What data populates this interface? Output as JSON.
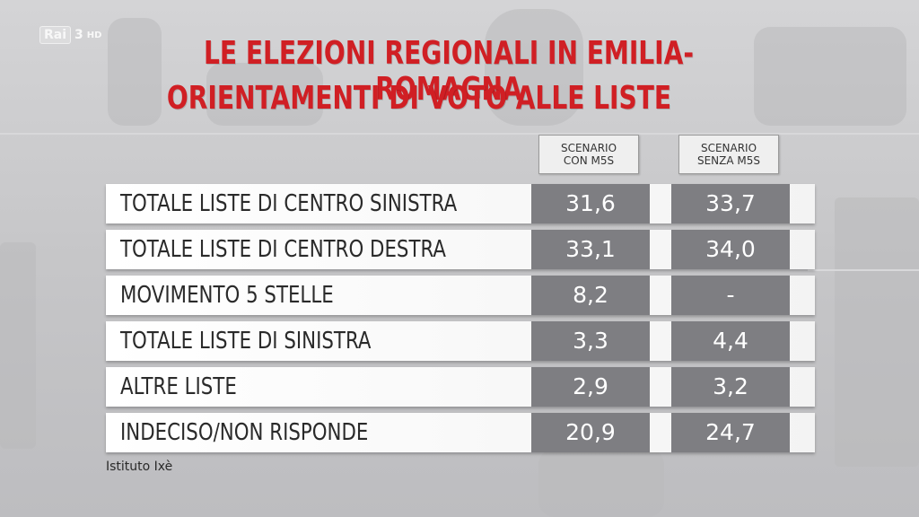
{
  "broadcaster": {
    "logo_text": "Rai",
    "channel": "3",
    "suffix": "HD"
  },
  "title_line1": "LE ELEZIONI REGIONALI IN EMILIA-ROMAGNA",
  "title_line2": "ORIENTAMENTI DI VOTO ALLE LISTE",
  "columns": [
    {
      "line1": "SCENARIO",
      "line2": "CON M5S"
    },
    {
      "line1": "SCENARIO",
      "line2": "SENZA M5S"
    }
  ],
  "colors": {
    "title": "#d01f24",
    "cell_bg": "#7e7e82",
    "row_bg": "#ffffff"
  },
  "chart_data": {
    "type": "table",
    "columns": [
      "SCENARIO CON M5S",
      "SCENARIO SENZA M5S"
    ],
    "rows": [
      {
        "label": "TOTALE LISTE DI CENTRO SINISTRA",
        "values": [
          "31,6",
          "33,7"
        ]
      },
      {
        "label": "TOTALE LISTE DI CENTRO DESTRA",
        "values": [
          "33,1",
          "34,0"
        ]
      },
      {
        "label": "MOVIMENTO 5 STELLE",
        "values": [
          "8,2",
          "-"
        ]
      },
      {
        "label": "TOTALE LISTE DI SINISTRA",
        "values": [
          "3,3",
          "4,4"
        ]
      },
      {
        "label": "ALTRE LISTE",
        "values": [
          "2,9",
          "3,2"
        ]
      },
      {
        "label": "INDECISO/NON RISPONDE",
        "values": [
          "20,9",
          "24,7"
        ]
      }
    ]
  },
  "source": "Istituto Ixè"
}
